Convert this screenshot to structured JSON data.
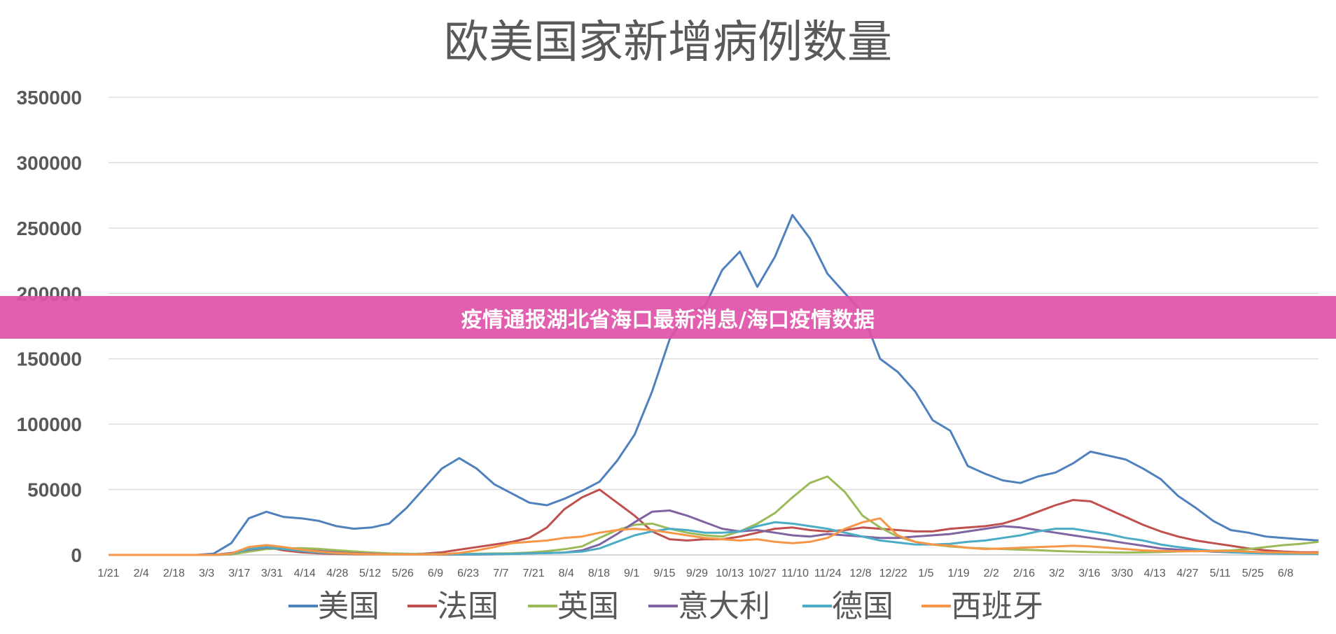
{
  "banner": {
    "text": "疫情通报湖北省海口最新消息/海口疫情数据",
    "color": "#e050a8"
  },
  "chart_data": {
    "type": "line",
    "title": "欧美国家新增病例数量",
    "xlabel": "",
    "ylabel": "",
    "ylim": [
      0,
      350000
    ],
    "yticks": [
      "0",
      "50000",
      "100000",
      "150000",
      "200000",
      "250000",
      "300000",
      "350000"
    ],
    "x_tick_labels": [
      "1/21",
      "2/4",
      "2/18",
      "3/3",
      "3/17",
      "3/31",
      "4/14",
      "4/28",
      "5/12",
      "5/26",
      "6/9",
      "6/23",
      "7/7",
      "7/21",
      "8/4",
      "8/18",
      "9/1",
      "9/15",
      "9/29",
      "10/13",
      "10/27",
      "11/10",
      "11/24",
      "12/8",
      "12/22",
      "1/5",
      "1/19",
      "2/2",
      "2/16",
      "3/2",
      "3/16",
      "3/30",
      "4/13",
      "4/27",
      "5/11",
      "5/25",
      "6/8"
    ],
    "grid": true,
    "legend_position": "bottom",
    "series": [
      {
        "name": "美国",
        "color": "#4f81bd",
        "values": [
          0,
          0,
          0,
          0,
          0,
          0,
          1000,
          9000,
          28000,
          33000,
          29000,
          28000,
          26000,
          22000,
          20000,
          21000,
          24000,
          36000,
          51000,
          66000,
          74000,
          66000,
          54000,
          47000,
          40000,
          38000,
          43000,
          49000,
          56000,
          72000,
          92000,
          125000,
          165000,
          185000,
          190000,
          218000,
          232000,
          205000,
          228000,
          260000,
          242000,
          215000,
          200000,
          185000,
          150000,
          140000,
          125000,
          103000,
          95000,
          68000,
          62000,
          57000,
          55000,
          60000,
          63000,
          70000,
          79000,
          76000,
          73000,
          66000,
          58000,
          45000,
          36000,
          26000,
          19000,
          17000,
          14000,
          13000,
          12000,
          11000
        ]
      },
      {
        "name": "法国",
        "color": "#c0504d",
        "values": [
          0,
          0,
          0,
          0,
          0,
          0,
          0,
          500,
          3000,
          6000,
          3500,
          2000,
          1200,
          800,
          500,
          400,
          400,
          600,
          1000,
          2000,
          4000,
          6000,
          8000,
          10000,
          13000,
          21000,
          35000,
          44000,
          50000,
          40000,
          30000,
          18000,
          12000,
          11000,
          12000,
          12000,
          14000,
          17000,
          20000,
          21000,
          19000,
          18000,
          19000,
          21000,
          20000,
          19000,
          18000,
          18000,
          20000,
          21000,
          22000,
          24000,
          28000,
          33000,
          38000,
          42000,
          41000,
          35000,
          29000,
          23000,
          18000,
          14000,
          11000,
          9000,
          7000,
          5000,
          3500,
          2500,
          2000,
          2000
        ]
      },
      {
        "name": "英国",
        "color": "#9bbb59",
        "values": [
          0,
          0,
          0,
          0,
          0,
          0,
          0,
          300,
          2500,
          4500,
          5000,
          5200,
          4600,
          3600,
          2700,
          1800,
          1200,
          900,
          700,
          700,
          800,
          900,
          1100,
          1300,
          1800,
          2900,
          4400,
          6500,
          13000,
          19000,
          23000,
          24000,
          20000,
          17000,
          15000,
          14000,
          18000,
          24000,
          32000,
          44000,
          55000,
          60000,
          48000,
          30000,
          21000,
          14000,
          10000,
          8000,
          6500,
          5500,
          5000,
          4500,
          4000,
          3600,
          3000,
          2600,
          2200,
          2000,
          1800,
          1900,
          2200,
          2700,
          3000,
          3200,
          3500,
          4500,
          6000,
          7500,
          8500,
          10000
        ]
      },
      {
        "name": "意大利",
        "color": "#8064a2",
        "values": [
          0,
          0,
          0,
          0,
          0,
          0,
          0,
          1500,
          4000,
          5500,
          4800,
          3800,
          3000,
          2000,
          1300,
          900,
          500,
          300,
          250,
          200,
          250,
          300,
          500,
          800,
          1200,
          1500,
          1800,
          3500,
          8000,
          16000,
          25000,
          33000,
          34000,
          30000,
          25000,
          20000,
          18000,
          19000,
          17000,
          15000,
          14000,
          16000,
          15000,
          14000,
          13000,
          13000,
          14000,
          15000,
          16000,
          18000,
          20000,
          22000,
          21000,
          19000,
          17000,
          15000,
          13000,
          11000,
          9000,
          7000,
          5000,
          4000,
          3200,
          2500,
          2000,
          1800,
          1500,
          1200,
          1000,
          900
        ]
      },
      {
        "name": "德国",
        "color": "#4bacc6",
        "values": [
          0,
          0,
          0,
          0,
          0,
          0,
          0,
          800,
          4500,
          6000,
          4500,
          3000,
          1800,
          1200,
          800,
          600,
          500,
          400,
          350,
          400,
          450,
          600,
          700,
          800,
          1100,
          1400,
          1800,
          2500,
          5000,
          10000,
          15000,
          18000,
          20000,
          19000,
          17000,
          17000,
          18000,
          22000,
          25000,
          24000,
          22000,
          20000,
          17000,
          14000,
          11000,
          9500,
          8000,
          8000,
          8500,
          10000,
          11000,
          13000,
          15000,
          18000,
          20000,
          20000,
          18000,
          16000,
          13000,
          11000,
          8000,
          6000,
          4500,
          3000,
          2000,
          1500,
          1200,
          1000,
          900,
          800
        ]
      },
      {
        "name": "西班牙",
        "color": "#f79646",
        "values": [
          0,
          0,
          0,
          0,
          0,
          0,
          0,
          1000,
          6000,
          7500,
          6000,
          4000,
          2500,
          1500,
          900,
          600,
          400,
          300,
          300,
          500,
          1500,
          3500,
          6000,
          9000,
          10000,
          11000,
          13000,
          14000,
          17000,
          19000,
          20000,
          19000,
          17000,
          15000,
          13000,
          12000,
          11000,
          12000,
          10000,
          9000,
          10000,
          13000,
          20000,
          25000,
          28000,
          15000,
          10000,
          8000,
          7000,
          5500,
          4500,
          5000,
          5500,
          6000,
          6500,
          7000,
          6500,
          5500,
          4500,
          3500,
          3000,
          2800,
          2800,
          3000,
          3000,
          2500,
          2000,
          1800,
          1500,
          1500
        ]
      }
    ]
  }
}
